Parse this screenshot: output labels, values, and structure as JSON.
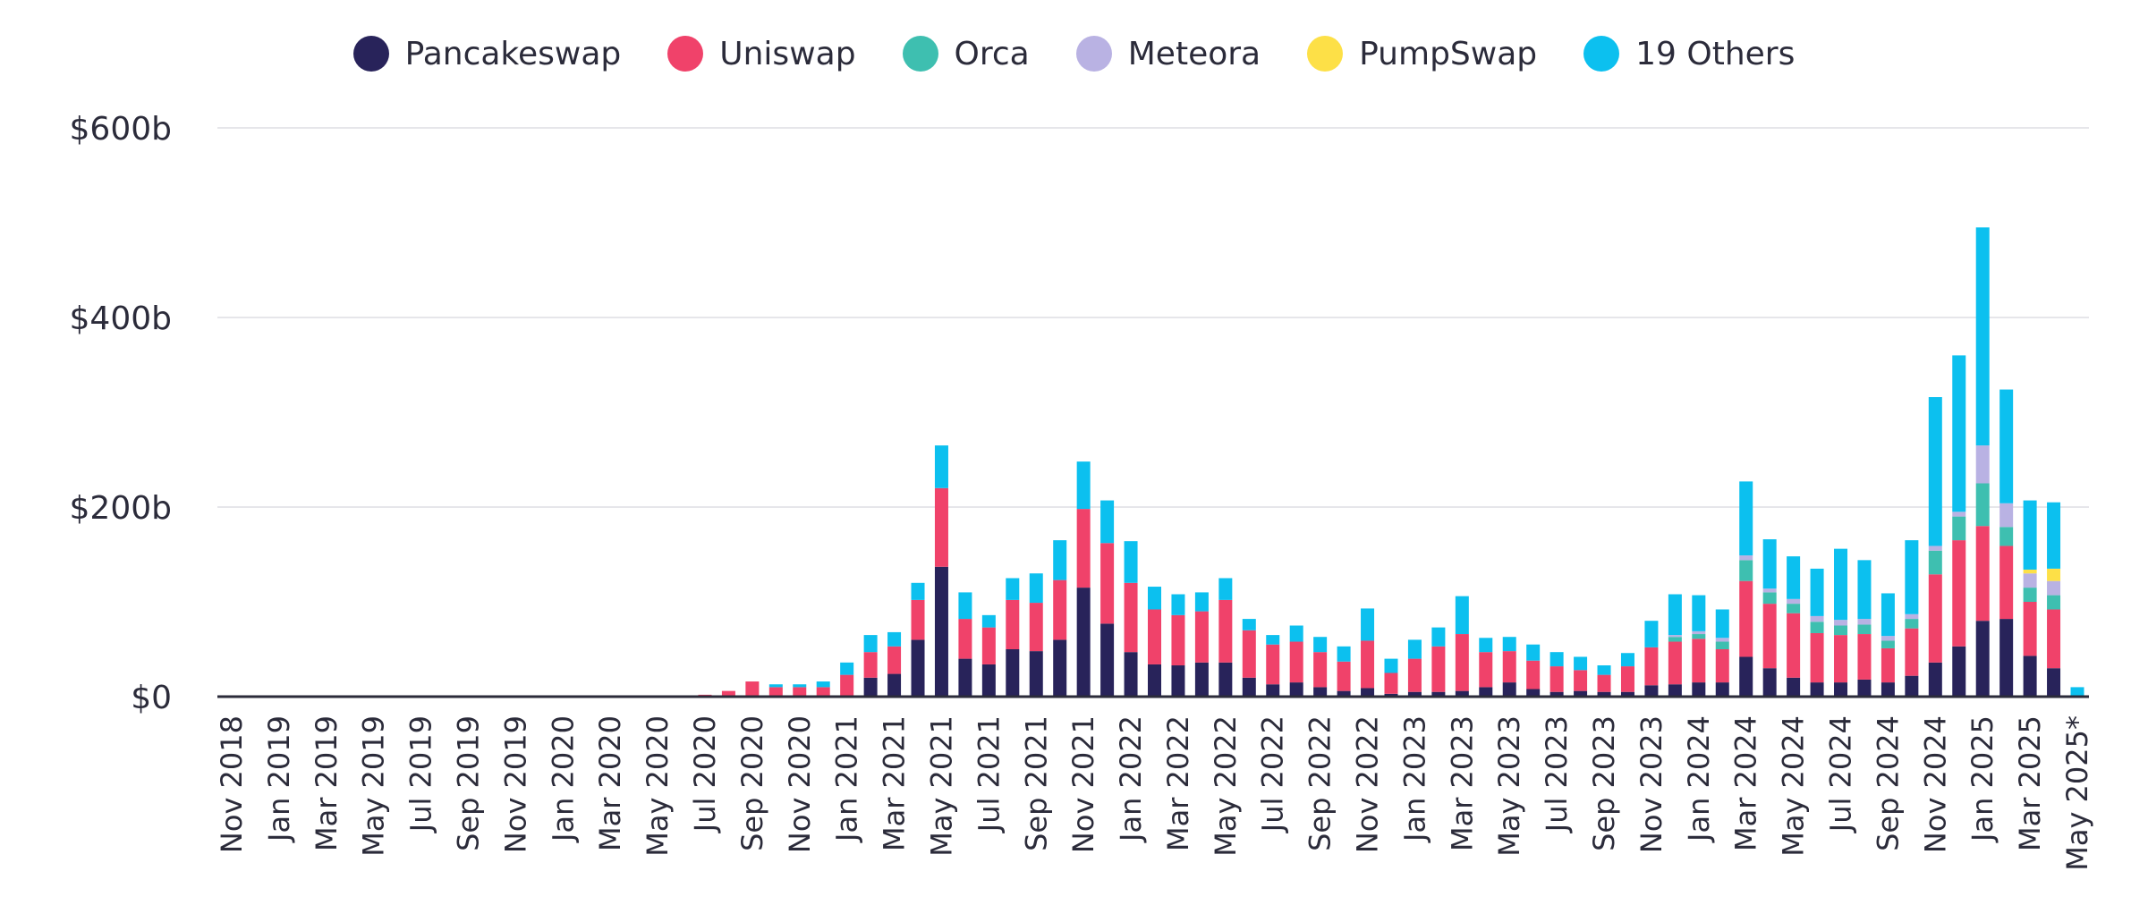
{
  "chart_data": {
    "type": "bar",
    "stacked": true,
    "legend_position": "top-center",
    "grid": true,
    "ylim": [
      0,
      600
    ],
    "yticks": [
      {
        "value": 0,
        "label": "$0"
      },
      {
        "value": 200,
        "label": "$200b"
      },
      {
        "value": 400,
        "label": "$400b"
      },
      {
        "value": 600,
        "label": "$600b"
      }
    ],
    "categories": [
      "Nov 2018",
      "Dec 2018",
      "Jan 2019",
      "Feb 2019",
      "Mar 2019",
      "Apr 2019",
      "May 2019",
      "Jun 2019",
      "Jul 2019",
      "Aug 2019",
      "Sep 2019",
      "Oct 2019",
      "Nov 2019",
      "Dec 2019",
      "Jan 2020",
      "Feb 2020",
      "Mar 2020",
      "Apr 2020",
      "May 2020",
      "Jun 2020",
      "Jul 2020",
      "Aug 2020",
      "Sep 2020",
      "Oct 2020",
      "Nov 2020",
      "Dec 2020",
      "Jan 2021",
      "Feb 2021",
      "Mar 2021",
      "Apr 2021",
      "May 2021",
      "Jun 2021",
      "Jul 2021",
      "Aug 2021",
      "Sep 2021",
      "Oct 2021",
      "Nov 2021",
      "Dec 2021",
      "Jan 2022",
      "Feb 2022",
      "Mar 2022",
      "Apr 2022",
      "May 2022",
      "Jun 2022",
      "Jul 2022",
      "Aug 2022",
      "Sep 2022",
      "Oct 2022",
      "Nov 2022",
      "Dec 2022",
      "Jan 2023",
      "Feb 2023",
      "Mar 2023",
      "Apr 2023",
      "May 2023",
      "Jun 2023",
      "Jul 2023",
      "Aug 2023",
      "Sep 2023",
      "Oct 2023",
      "Nov 2023",
      "Dec 2023",
      "Jan 2024",
      "Feb 2024",
      "Mar 2024",
      "Apr 2024",
      "May 2024",
      "Jun 2024",
      "Jul 2024",
      "Aug 2024",
      "Sep 2024",
      "Oct 2024",
      "Nov 2024",
      "Dec 2024",
      "Jan 2025",
      "Feb 2025",
      "Mar 2025",
      "Apr 2025",
      "May 2025*"
    ],
    "tick_labels": [
      "Nov 2018",
      "Jan 2019",
      "Mar 2019",
      "May 2019",
      "Jul 2019",
      "Sep 2019",
      "Nov 2019",
      "Jan 2020",
      "Mar 2020",
      "May 2020",
      "Jul 2020",
      "Sep 2020",
      "Nov 2020",
      "Jan 2021",
      "Mar 2021",
      "May 2021",
      "Jul 2021",
      "Sep 2021",
      "Nov 2021",
      "Jan 2022",
      "Mar 2022",
      "May 2022",
      "Jul 2022",
      "Sep 2022",
      "Nov 2022",
      "Jan 2023",
      "Mar 2023",
      "May 2023",
      "Jul 2023",
      "Sep 2023",
      "Nov 2023",
      "Jan 2024",
      "Mar 2024",
      "May 2024",
      "Jul 2024",
      "Sep 2024",
      "Nov 2024",
      "Jan 2025",
      "Mar 2025",
      "May 2025*"
    ],
    "series": [
      {
        "name": "Pancakeswap",
        "color": "#28235a",
        "values": [
          0,
          0,
          0,
          0,
          0,
          0,
          0,
          0,
          0,
          0,
          0,
          0,
          0,
          0,
          0,
          0,
          0,
          0,
          0,
          0,
          0,
          0,
          0,
          0,
          0,
          0,
          0,
          20,
          24,
          60,
          137,
          40,
          34,
          50,
          48,
          60,
          115,
          77,
          47,
          34,
          33,
          36,
          36,
          20,
          13,
          15,
          10,
          6,
          9,
          3,
          5,
          5,
          6,
          10,
          15,
          8,
          5,
          6,
          5,
          5,
          12,
          13,
          15,
          15,
          42,
          30,
          20,
          15,
          15,
          18,
          15,
          22,
          36,
          53,
          80,
          82,
          43,
          30,
          0
        ]
      },
      {
        "name": "Uniswap",
        "color": "#f0426a",
        "values": [
          0,
          0,
          0,
          0,
          0,
          0,
          0,
          0,
          0,
          0,
          0,
          0,
          0,
          0,
          0,
          0,
          0,
          0,
          0,
          0,
          2,
          6,
          16,
          10,
          10,
          10,
          23,
          27,
          29,
          42,
          83,
          42,
          39,
          52,
          51,
          63,
          83,
          85,
          73,
          58,
          53,
          54,
          66,
          50,
          42,
          43,
          37,
          31,
          50,
          22,
          35,
          48,
          60,
          37,
          33,
          30,
          27,
          22,
          18,
          27,
          40,
          45,
          46,
          35,
          80,
          68,
          68,
          52,
          50,
          48,
          36,
          50,
          93,
          112,
          100,
          77,
          57,
          62,
          0
        ]
      },
      {
        "name": "Orca",
        "color": "#3ebfb0",
        "values": [
          0,
          0,
          0,
          0,
          0,
          0,
          0,
          0,
          0,
          0,
          0,
          0,
          0,
          0,
          0,
          0,
          0,
          0,
          0,
          0,
          0,
          0,
          0,
          0,
          0,
          0,
          0,
          0,
          0,
          0,
          0,
          0,
          0,
          0,
          0,
          0,
          0,
          0,
          0,
          0,
          0,
          0,
          0,
          0,
          0,
          0,
          0,
          0,
          0,
          0,
          0,
          0,
          0,
          0,
          0,
          0,
          0,
          0,
          0,
          0,
          0,
          5,
          5,
          8,
          22,
          12,
          10,
          12,
          10,
          10,
          8,
          10,
          25,
          25,
          45,
          20,
          15,
          15,
          0
        ]
      },
      {
        "name": "Meteora",
        "color": "#b9b2e3",
        "values": [
          0,
          0,
          0,
          0,
          0,
          0,
          0,
          0,
          0,
          0,
          0,
          0,
          0,
          0,
          0,
          0,
          0,
          0,
          0,
          0,
          0,
          0,
          0,
          0,
          0,
          0,
          0,
          0,
          0,
          0,
          0,
          0,
          0,
          0,
          0,
          0,
          0,
          0,
          0,
          0,
          0,
          0,
          0,
          0,
          0,
          0,
          0,
          0,
          0,
          0,
          0,
          0,
          0,
          0,
          0,
          0,
          0,
          0,
          0,
          0,
          0,
          2,
          3,
          4,
          5,
          4,
          5,
          6,
          6,
          6,
          5,
          5,
          5,
          5,
          40,
          25,
          15,
          15,
          0
        ]
      },
      {
        "name": "PumpSwap",
        "color": "#fde047",
        "values": [
          0,
          0,
          0,
          0,
          0,
          0,
          0,
          0,
          0,
          0,
          0,
          0,
          0,
          0,
          0,
          0,
          0,
          0,
          0,
          0,
          0,
          0,
          0,
          0,
          0,
          0,
          0,
          0,
          0,
          0,
          0,
          0,
          0,
          0,
          0,
          0,
          0,
          0,
          0,
          0,
          0,
          0,
          0,
          0,
          0,
          0,
          0,
          0,
          0,
          0,
          0,
          0,
          0,
          0,
          0,
          0,
          0,
          0,
          0,
          0,
          0,
          0,
          0,
          0,
          0,
          0,
          0,
          0,
          0,
          0,
          0,
          0,
          0,
          0,
          0,
          0,
          4,
          13,
          0
        ]
      },
      {
        "name": "19 Others",
        "color": "#0cc0ef",
        "values": [
          0,
          0,
          0,
          0,
          0,
          0,
          0,
          0,
          0,
          0,
          0,
          0,
          0,
          0,
          0,
          0,
          0,
          0,
          0,
          0,
          0,
          0,
          0,
          3,
          3,
          6,
          13,
          18,
          15,
          18,
          45,
          28,
          13,
          23,
          31,
          42,
          50,
          45,
          44,
          24,
          22,
          20,
          23,
          12,
          10,
          17,
          16,
          16,
          34,
          15,
          20,
          20,
          40,
          15,
          15,
          17,
          15,
          14,
          10,
          14,
          28,
          43,
          38,
          30,
          78,
          52,
          45,
          50,
          75,
          62,
          45,
          78,
          157,
          165,
          230,
          120,
          73,
          70,
          10
        ]
      }
    ]
  }
}
